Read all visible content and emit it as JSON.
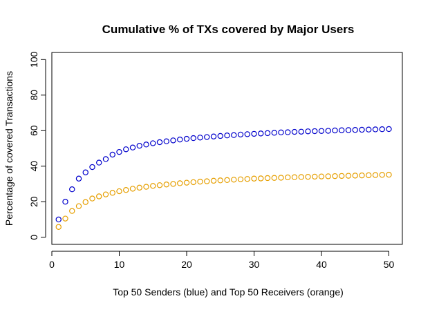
{
  "chart_data": {
    "type": "scatter",
    "title": "Cumulative % of TXs covered by Major Users",
    "xlabel": "Top 50 Senders (blue) and Top 50 Receivers (orange)",
    "ylabel": "Percentage of covered Transactions",
    "xlim": [
      0,
      52
    ],
    "ylim": [
      -4,
      104
    ],
    "x_ticks": [
      0,
      10,
      20,
      30,
      40,
      50
    ],
    "y_ticks": [
      0,
      20,
      40,
      60,
      80,
      100
    ],
    "grid": false,
    "legend": "none",
    "marker": "open-circle",
    "x": [
      1,
      2,
      3,
      4,
      5,
      6,
      7,
      8,
      9,
      10,
      11,
      12,
      13,
      14,
      15,
      16,
      17,
      18,
      19,
      20,
      21,
      22,
      23,
      24,
      25,
      26,
      27,
      28,
      29,
      30,
      31,
      32,
      33,
      34,
      35,
      36,
      37,
      38,
      39,
      40,
      41,
      42,
      43,
      44,
      45,
      46,
      47,
      48,
      49,
      50
    ],
    "series": [
      {
        "color": "#0000cc",
        "values": [
          10.0,
          20.0,
          27.0,
          33.0,
          36.5,
          39.5,
          42.0,
          44.0,
          46.5,
          48.0,
          49.5,
          50.5,
          51.5,
          52.2,
          52.9,
          53.5,
          54.0,
          54.5,
          55.0,
          55.4,
          55.8,
          56.1,
          56.4,
          56.7,
          57.0,
          57.3,
          57.5,
          57.8,
          58.0,
          58.2,
          58.4,
          58.6,
          58.8,
          59.0,
          59.1,
          59.3,
          59.4,
          59.6,
          59.7,
          59.8,
          59.9,
          60.1,
          60.2,
          60.3,
          60.4,
          60.5,
          60.6,
          60.7,
          60.8,
          60.9
        ]
      },
      {
        "color": "#e69f00",
        "values": [
          5.8,
          10.5,
          14.8,
          17.5,
          19.8,
          21.8,
          23.0,
          24.1,
          25.0,
          25.9,
          26.6,
          27.3,
          27.9,
          28.4,
          28.9,
          29.3,
          29.7,
          30.0,
          30.4,
          30.7,
          31.0,
          31.3,
          31.5,
          31.8,
          32.0,
          32.2,
          32.4,
          32.6,
          32.8,
          33.0,
          33.1,
          33.3,
          33.4,
          33.5,
          33.7,
          33.8,
          33.9,
          34.0,
          34.1,
          34.2,
          34.3,
          34.4,
          34.5,
          34.6,
          34.7,
          34.8,
          34.9,
          35.0,
          35.1,
          35.2
        ]
      }
    ]
  }
}
